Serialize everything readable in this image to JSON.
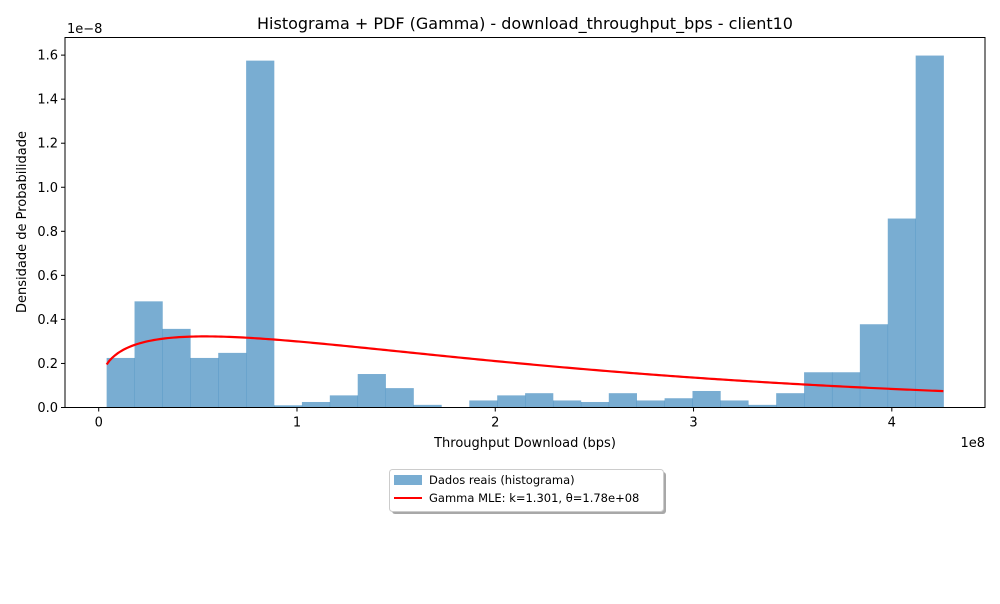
{
  "chart_data": {
    "type": "bar",
    "title": "Histograma + PDF (Gamma) - download_throughput_bps - client10",
    "xlabel": "Throughput Download (bps)",
    "ylabel": "Densidade de Probabilidade",
    "x_offset_text": "1e8",
    "y_offset_text": "1e−8",
    "xlim": [
      -0.17,
      4.47
    ],
    "ylim": [
      0,
      1.68
    ],
    "x_ticks": [
      0,
      1,
      2,
      3,
      4
    ],
    "x_tick_labels": [
      "0",
      "1",
      "2",
      "3",
      "4"
    ],
    "y_ticks": [
      0,
      0.2,
      0.4,
      0.6,
      0.8,
      1.0,
      1.2,
      1.4,
      1.6
    ],
    "y_tick_labels": [
      "0.0",
      "0.2",
      "0.4",
      "0.6",
      "0.8",
      "1.0",
      "1.2",
      "1.4",
      "1.6"
    ],
    "bin_start": 0.04,
    "bin_width": 0.1407,
    "histogram_values": [
      0.225,
      0.482,
      0.357,
      0.225,
      0.248,
      1.575,
      0.01,
      0.025,
      0.055,
      0.152,
      0.088,
      0.012,
      0.0,
      0.032,
      0.055,
      0.065,
      0.032,
      0.025,
      0.065,
      0.032,
      0.042,
      0.075,
      0.032,
      0.012,
      0.065,
      0.16,
      0.16,
      0.378,
      0.858,
      1.598
    ],
    "series": [
      {
        "name": "Dados reais (histograma)",
        "type": "bar",
        "color": "#1f77b4",
        "opacity": 0.6
      },
      {
        "name": "Gamma MLE: k=1.301, θ=1.78e+08",
        "type": "line",
        "color": "#ff0000",
        "x_start": 0.04,
        "x_end": 4.26,
        "k": 1.301,
        "theta": 1.78
      }
    ],
    "legend_position": "bottom-center, below axes",
    "grid": false
  }
}
